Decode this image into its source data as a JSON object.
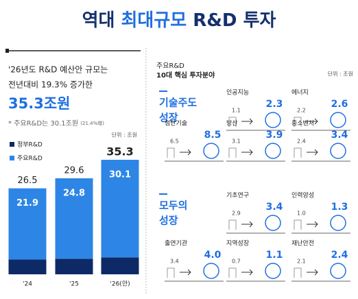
{
  "title": {
    "pre": "역대",
    "emph": "최대규모",
    "post": "R&D 투자"
  },
  "left": {
    "line1": "'26년도 R&D 예산안 규모는",
    "line2": "전년대비 19.3% 증가한",
    "big": "35.3조원",
    "note": "* 주요R&D는 30.1조원",
    "note_small": "(21.4%增)"
  },
  "chart_data": {
    "type": "bar",
    "stacked": true,
    "unit": "단위 : 조원",
    "categories": [
      "'24",
      "'25",
      "'26(안)"
    ],
    "series": [
      {
        "name": "정부R&D",
        "color": "#0d2a66",
        "values": [
          4.6,
          4.8,
          5.2
        ]
      },
      {
        "name": "주요R&D",
        "color": "#2d86e6",
        "values": [
          21.9,
          24.8,
          30.1
        ]
      }
    ],
    "totals": [
      26.5,
      29.6,
      35.3
    ]
  },
  "right": {
    "heading1": "주요R&D",
    "heading2": "10대 핵심 투자분야",
    "unit": "단위 : 조원",
    "groups": [
      {
        "name": [
          "기술주도",
          "성장"
        ],
        "items": [
          {
            "label": "인공지능",
            "from": "1.1",
            "to": "2.3"
          },
          {
            "label": "에너지",
            "from": "2.2",
            "to": "2.6"
          },
          {
            "label": "첨단기술",
            "from": "6.5",
            "to": "8.5"
          },
          {
            "label": "방산",
            "from": "3.1",
            "to": "3.9"
          },
          {
            "label": "중소벤처",
            "from": "2.4",
            "to": "3.4"
          }
        ]
      },
      {
        "name": [
          "모두의",
          "성장"
        ],
        "items": [
          {
            "label": "기초연구",
            "from": "2.9",
            "to": "3.4"
          },
          {
            "label": "인력양성",
            "from": "1.0",
            "to": "1.3"
          },
          {
            "label": "출연기관",
            "from": "3.4",
            "to": "4.0"
          },
          {
            "label": "지역성장",
            "from": "0.7",
            "to": "1.1"
          },
          {
            "label": "재난안전",
            "from": "2.1",
            "to": "2.4"
          }
        ]
      }
    ]
  }
}
